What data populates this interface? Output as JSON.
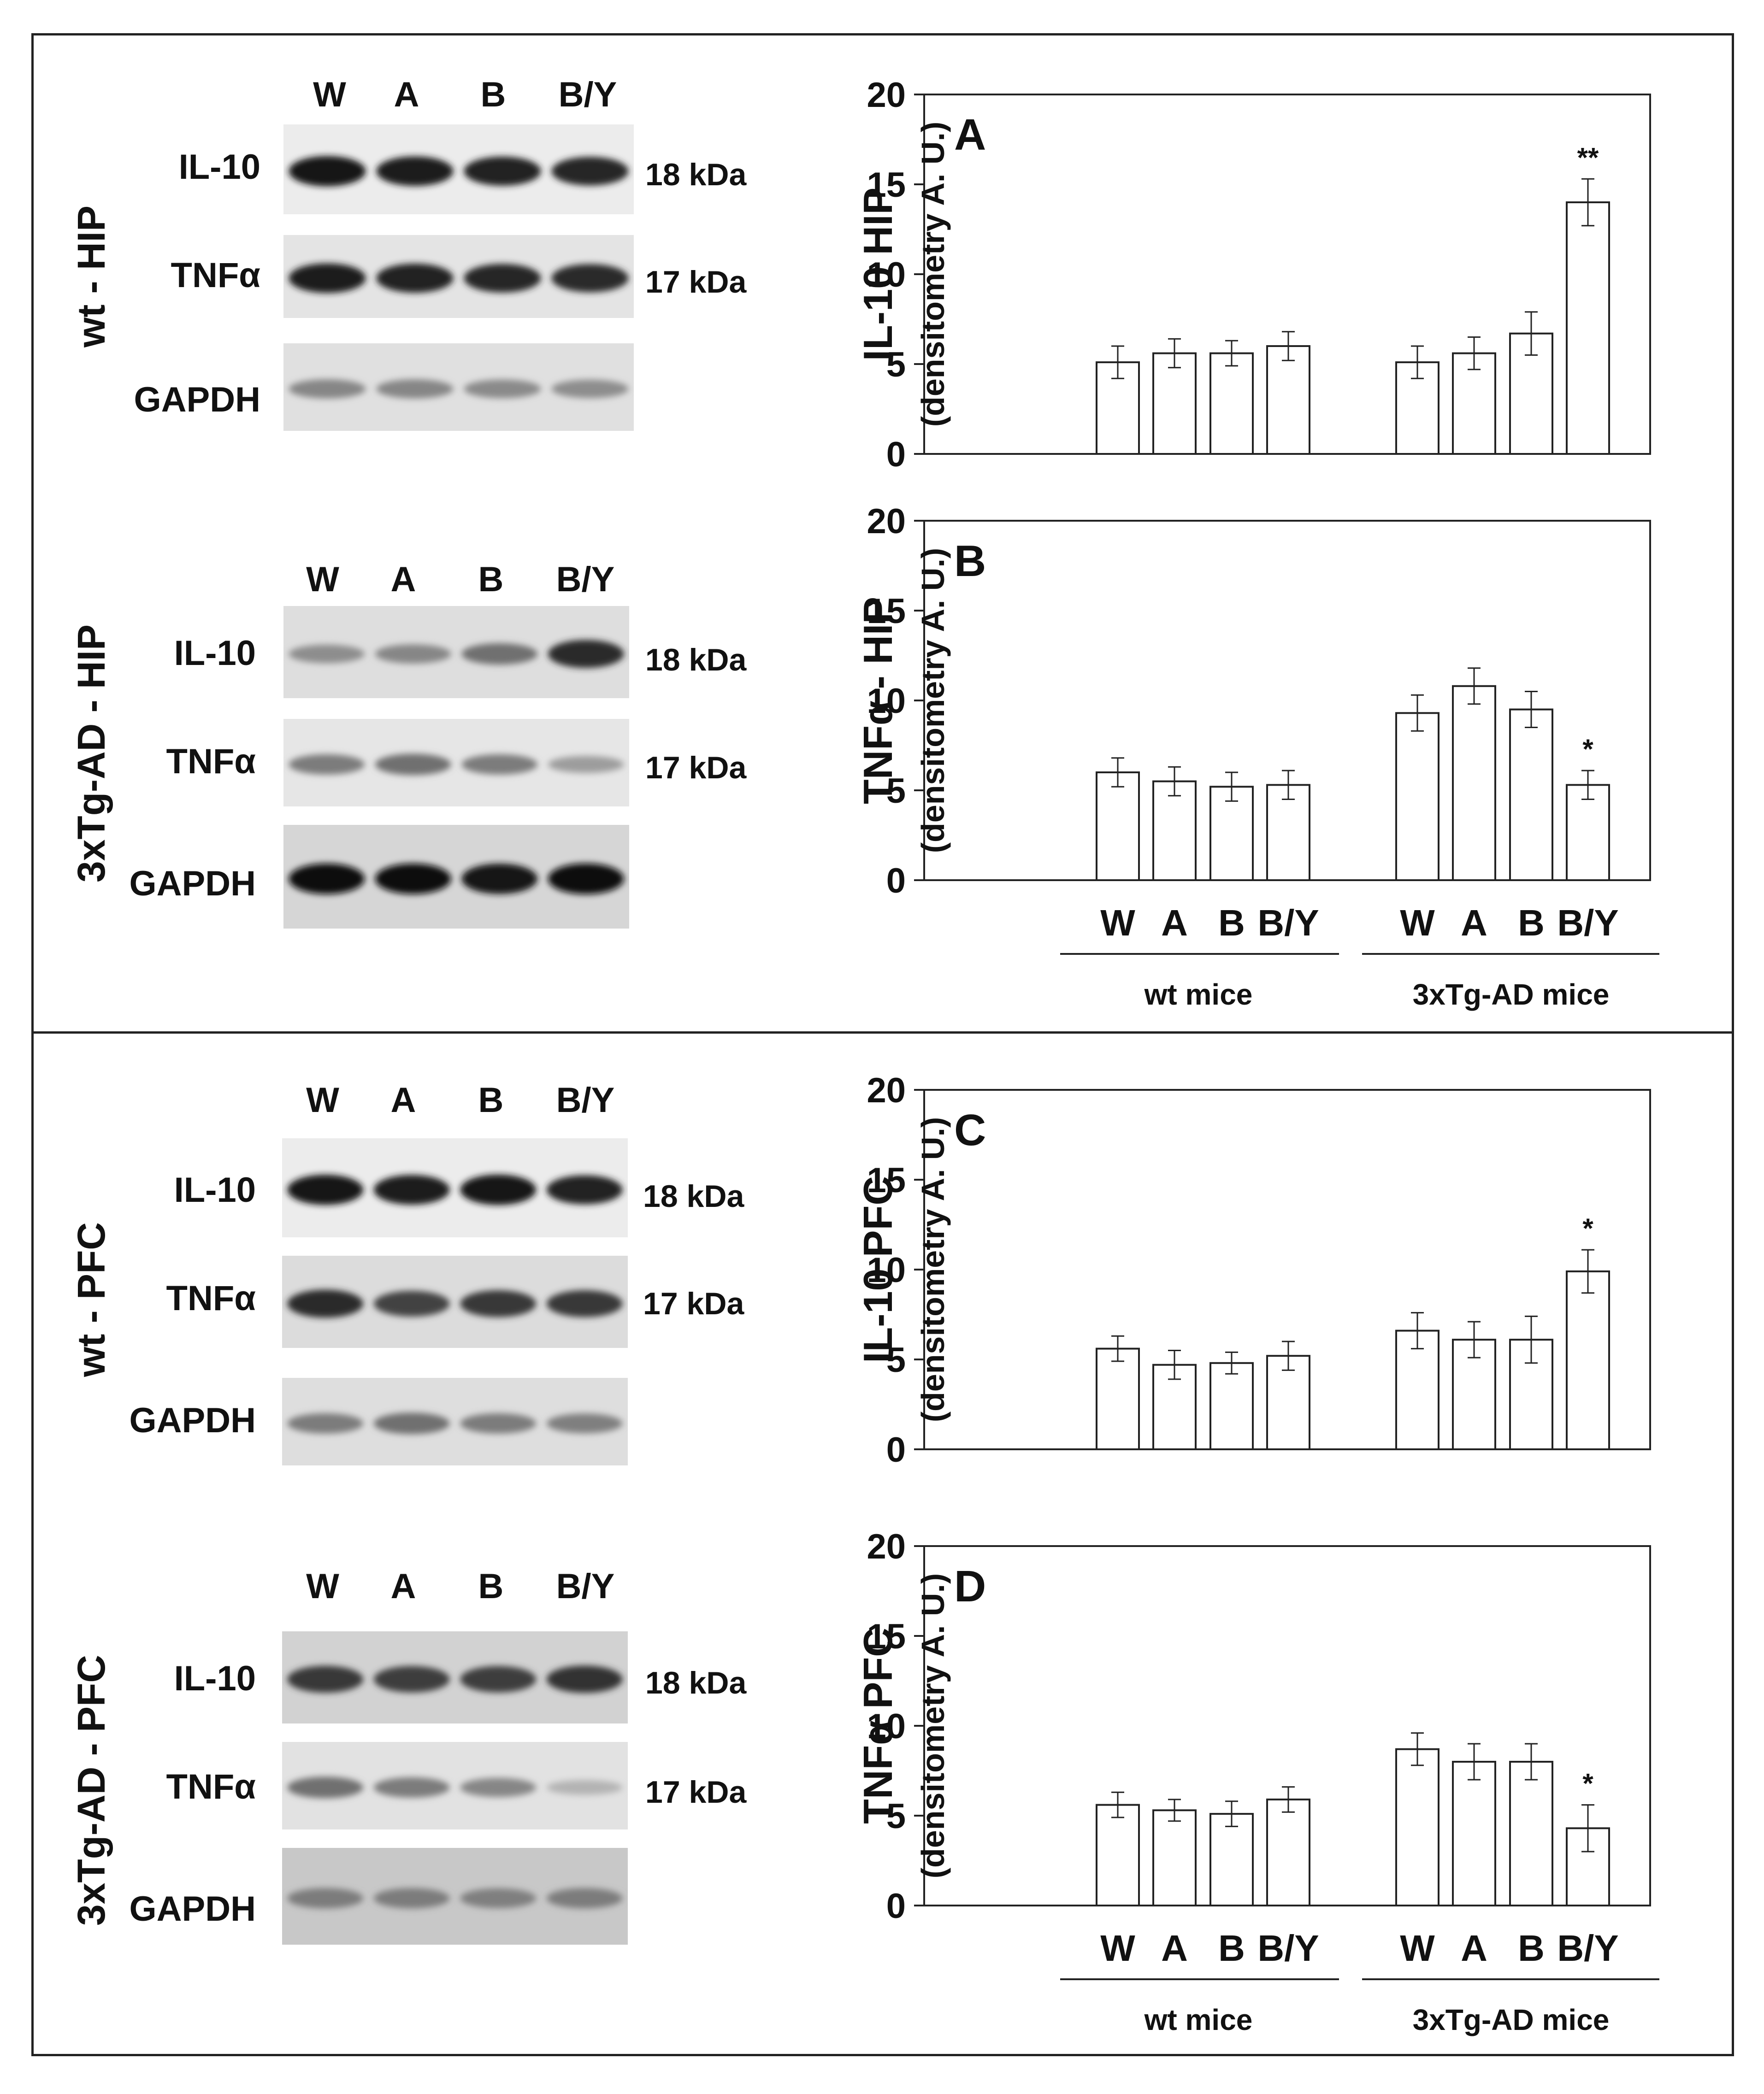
{
  "figure": {
    "lanes": [
      "W",
      "A",
      "B",
      "B/Y"
    ],
    "blots": [
      {
        "region_label": "wt - HIP",
        "rows": [
          {
            "protein": "IL-10",
            "kda": "18 kDa",
            "intensity": [
              0.95,
              0.92,
              0.9,
              0.88
            ],
            "background": "#ececec"
          },
          {
            "protein": "TNFα",
            "kda": "17 kDa",
            "intensity": [
              0.92,
              0.9,
              0.88,
              0.86
            ],
            "background": "#e4e4e4"
          },
          {
            "protein": "GAPDH",
            "kda": "",
            "intensity": [
              0.45,
              0.45,
              0.43,
              0.42
            ],
            "background": "#e0e0e0"
          }
        ]
      },
      {
        "region_label": "3xTg-AD - HIP",
        "rows": [
          {
            "protein": "IL-10",
            "kda": "18 kDa",
            "intensity": [
              0.42,
              0.45,
              0.55,
              0.85
            ],
            "background": "#dedede"
          },
          {
            "protein": "TNFα",
            "kda": "17 kDa",
            "intensity": [
              0.5,
              0.55,
              0.5,
              0.35
            ],
            "background": "#e6e6e6"
          },
          {
            "protein": "GAPDH",
            "kda": "",
            "intensity": [
              0.97,
              0.97,
              0.96,
              0.98
            ],
            "background": "#d6d6d6"
          }
        ]
      },
      {
        "region_label": "wt - PFC",
        "rows": [
          {
            "protein": "IL-10",
            "kda": "18 kDa",
            "intensity": [
              0.95,
              0.93,
              0.96,
              0.9
            ],
            "background": "#ececec"
          },
          {
            "protein": "TNFα",
            "kda": "17 kDa",
            "intensity": [
              0.85,
              0.75,
              0.8,
              0.8
            ],
            "background": "#dcdcdc"
          },
          {
            "protein": "GAPDH",
            "kda": "",
            "intensity": [
              0.5,
              0.55,
              0.5,
              0.48
            ],
            "background": "#dedede"
          }
        ]
      },
      {
        "region_label": "3xTg-AD - PFC",
        "rows": [
          {
            "protein": "IL-10",
            "kda": "18 kDa",
            "intensity": [
              0.8,
              0.78,
              0.78,
              0.82
            ],
            "background": "#d2d2d2"
          },
          {
            "protein": "TNFα",
            "kda": "17 kDa",
            "intensity": [
              0.55,
              0.5,
              0.45,
              0.25
            ],
            "background": "#e2e2e2"
          },
          {
            "protein": "GAPDH",
            "kda": "",
            "intensity": [
              0.5,
              0.5,
              0.48,
              0.5
            ],
            "background": "#c8c8c8"
          }
        ]
      }
    ]
  },
  "chart_data": [
    {
      "type": "bar",
      "panel": "A",
      "ylabel": "IL-10 HIP",
      "ylabel_sub": "(densitometry A. U.)",
      "ylim": [
        0,
        20
      ],
      "yticks": [
        0,
        5,
        10,
        15,
        20
      ],
      "groups": [
        "wt mice",
        "3xTg-AD mice"
      ],
      "categories": [
        "W",
        "A",
        "B",
        "B/Y"
      ],
      "series": [
        {
          "name": "wt mice",
          "values": [
            5.1,
            5.6,
            5.6,
            6.0
          ],
          "errors": [
            0.9,
            0.8,
            0.7,
            0.8
          ],
          "annotations": [
            "",
            "",
            "",
            ""
          ]
        },
        {
          "name": "3xTg-AD mice",
          "values": [
            5.1,
            5.6,
            6.7,
            14.0
          ],
          "errors": [
            0.9,
            0.9,
            1.2,
            1.3
          ],
          "annotations": [
            "",
            "",
            "",
            "**"
          ]
        }
      ]
    },
    {
      "type": "bar",
      "panel": "B",
      "ylabel": "TNFα - HIP",
      "ylabel_sub": "(densitometry A. U.)",
      "ylim": [
        0,
        20
      ],
      "yticks": [
        0,
        5,
        10,
        15,
        20
      ],
      "groups": [
        "wt mice",
        "3xTg-AD mice"
      ],
      "categories": [
        "W",
        "A",
        "B",
        "B/Y"
      ],
      "series": [
        {
          "name": "wt mice",
          "values": [
            6.0,
            5.5,
            5.2,
            5.3
          ],
          "errors": [
            0.8,
            0.8,
            0.8,
            0.8
          ],
          "annotations": [
            "",
            "",
            "",
            ""
          ]
        },
        {
          "name": "3xTg-AD mice",
          "values": [
            9.3,
            10.8,
            9.5,
            5.3
          ],
          "errors": [
            1.0,
            1.0,
            1.0,
            0.8
          ],
          "annotations": [
            "",
            "",
            "",
            "*"
          ]
        }
      ]
    },
    {
      "type": "bar",
      "panel": "C",
      "ylabel": "IL-10 PFC",
      "ylabel_sub": "(densitometry A. U.)",
      "ylim": [
        0,
        20
      ],
      "yticks": [
        0,
        5,
        10,
        15,
        20
      ],
      "groups": [
        "wt mice",
        "3xTg-AD mice"
      ],
      "categories": [
        "W",
        "A",
        "B",
        "B/Y"
      ],
      "series": [
        {
          "name": "wt mice",
          "values": [
            5.6,
            4.7,
            4.8,
            5.2
          ],
          "errors": [
            0.7,
            0.8,
            0.6,
            0.8
          ],
          "annotations": [
            "",
            "",
            "",
            ""
          ]
        },
        {
          "name": "3xTg-AD mice",
          "values": [
            6.6,
            6.1,
            6.1,
            9.9
          ],
          "errors": [
            1.0,
            1.0,
            1.3,
            1.2
          ],
          "annotations": [
            "",
            "",
            "",
            "*"
          ]
        }
      ]
    },
    {
      "type": "bar",
      "panel": "D",
      "ylabel": "TNFα PFC",
      "ylabel_sub": "(densitometry A. U.)",
      "ylim": [
        0,
        20
      ],
      "yticks": [
        0,
        5,
        10,
        15,
        20
      ],
      "groups": [
        "wt mice",
        "3xTg-AD mice"
      ],
      "categories": [
        "W",
        "A",
        "B",
        "B/Y"
      ],
      "series": [
        {
          "name": "wt mice",
          "values": [
            5.6,
            5.3,
            5.1,
            5.9
          ],
          "errors": [
            0.7,
            0.6,
            0.7,
            0.7
          ],
          "annotations": [
            "",
            "",
            "",
            ""
          ]
        },
        {
          "name": "3xTg-AD mice",
          "values": [
            8.7,
            8.0,
            8.0,
            4.3
          ],
          "errors": [
            0.9,
            1.0,
            1.0,
            1.3
          ],
          "annotations": [
            "",
            "",
            "",
            "*"
          ]
        }
      ]
    }
  ]
}
